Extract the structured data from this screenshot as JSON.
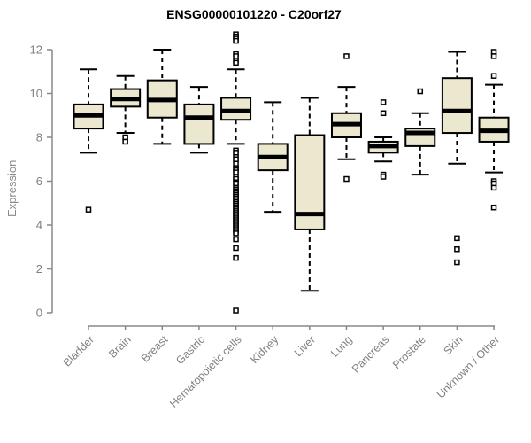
{
  "title": "ENSG00000101220 - C20orf27",
  "chart_data": {
    "type": "boxplot",
    "title": "ENSG00000101220 - C20orf27",
    "xlabel": "",
    "ylabel": "Expression",
    "ylim": [
      0,
      12
    ],
    "yticks": [
      0,
      2,
      4,
      6,
      8,
      10,
      12
    ],
    "grid": false,
    "categories": [
      "Bladder",
      "Brain",
      "Breast",
      "Gastric",
      "Hematopoietic cells",
      "Kidney",
      "Liver",
      "Lung",
      "Pancreas",
      "Prostate",
      "Skin",
      "Unknown / Other"
    ],
    "series": [
      {
        "category": "Bladder",
        "whisker_low": 7.3,
        "q1": 8.4,
        "median": 9.0,
        "q3": 9.5,
        "whisker_high": 11.1,
        "outliers": [
          4.7
        ]
      },
      {
        "category": "Brain",
        "whisker_low": 8.2,
        "q1": 9.4,
        "median": 9.75,
        "q3": 10.2,
        "whisker_high": 10.8,
        "outliers": [
          8.0,
          7.8
        ]
      },
      {
        "category": "Breast",
        "whisker_low": 7.7,
        "q1": 8.9,
        "median": 9.7,
        "q3": 10.6,
        "whisker_high": 12.0,
        "outliers": []
      },
      {
        "category": "Gastric",
        "whisker_low": 7.3,
        "q1": 7.7,
        "median": 8.9,
        "q3": 9.5,
        "whisker_high": 10.3,
        "outliers": []
      },
      {
        "category": "Hematopoietic cells",
        "whisker_low": 7.7,
        "q1": 8.8,
        "median": 9.2,
        "q3": 9.8,
        "whisker_high": 11.1,
        "outliers": [
          12.7,
          12.6,
          12.5,
          12.4,
          11.8,
          11.7,
          11.5,
          11.4,
          7.4,
          7.3,
          7.1,
          7.0,
          6.8,
          6.6,
          6.5,
          6.4,
          6.2,
          6.1,
          5.95,
          5.9,
          5.7,
          5.62,
          5.54,
          5.46,
          5.38,
          5.3,
          5.22,
          5.14,
          5.06,
          4.98,
          4.9,
          4.82,
          4.74,
          4.66,
          4.58,
          4.5,
          4.42,
          4.34,
          4.26,
          4.18,
          4.1,
          4.02,
          3.94,
          3.86,
          3.78,
          3.7,
          3.62,
          3.35,
          2.95,
          2.5,
          0.1
        ]
      },
      {
        "category": "Kidney",
        "whisker_low": 4.6,
        "q1": 6.5,
        "median": 7.1,
        "q3": 7.7,
        "whisker_high": 9.6,
        "outliers": []
      },
      {
        "category": "Liver",
        "whisker_low": 1.0,
        "q1": 3.8,
        "median": 4.5,
        "q3": 8.1,
        "whisker_high": 9.8,
        "outliers": []
      },
      {
        "category": "Lung",
        "whisker_low": 7.0,
        "q1": 8.0,
        "median": 8.6,
        "q3": 9.1,
        "whisker_high": 10.3,
        "outliers": [
          11.7,
          6.1
        ]
      },
      {
        "category": "Pancreas",
        "whisker_low": 6.9,
        "q1": 7.3,
        "median": 7.6,
        "q3": 7.8,
        "whisker_high": 8.0,
        "outliers": [
          9.6,
          9.1,
          6.3,
          6.2
        ]
      },
      {
        "category": "Prostate",
        "whisker_low": 6.3,
        "q1": 7.6,
        "median": 8.2,
        "q3": 8.4,
        "whisker_high": 9.1,
        "outliers": [
          10.1
        ]
      },
      {
        "category": "Skin",
        "whisker_low": 6.8,
        "q1": 8.2,
        "median": 9.2,
        "q3": 10.7,
        "whisker_high": 11.9,
        "outliers": [
          3.4,
          2.9,
          2.3
        ]
      },
      {
        "category": "Unknown / Other",
        "whisker_low": 6.4,
        "q1": 7.8,
        "median": 8.3,
        "q3": 8.9,
        "whisker_high": 10.4,
        "outliers": [
          11.9,
          11.7,
          10.8,
          6.0,
          5.9,
          5.7,
          4.8
        ]
      }
    ],
    "colors": {
      "box_fill": "#ECE7CF",
      "box_stroke": "#000000",
      "median": "#000000",
      "outlier_fill": "#ffffff",
      "axis": "#888888",
      "tick_label": "#808080",
      "title": "#000000"
    },
    "legend": null
  }
}
